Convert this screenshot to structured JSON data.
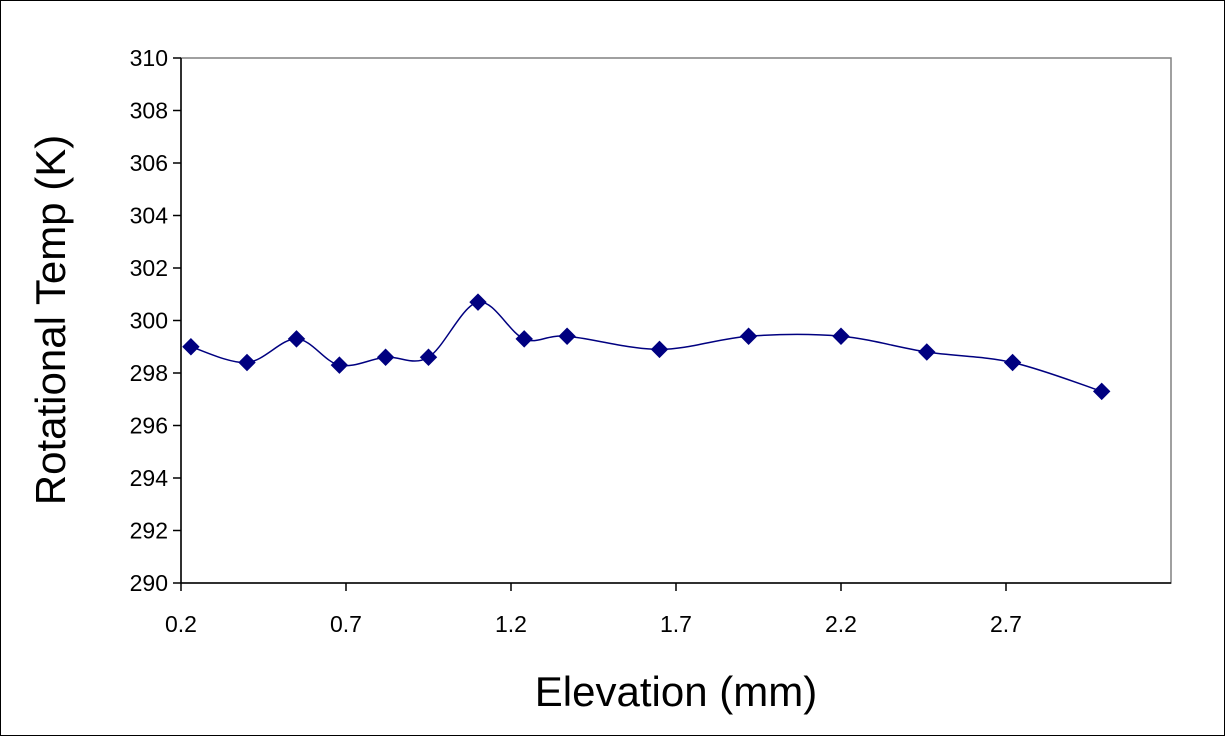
{
  "chart_data": {
    "type": "line",
    "xlabel": "Elevation (mm)",
    "ylabel": "Rotational Temp (K)",
    "xlim": [
      0.2,
      3.2
    ],
    "ylim": [
      290,
      310
    ],
    "x_ticks": [
      0.2,
      0.7,
      1.2,
      1.7,
      2.2,
      2.7
    ],
    "x_tick_labels": [
      "0.2",
      "0.7",
      "1.2",
      "1.7",
      "2.2",
      "2.7"
    ],
    "y_ticks": [
      290,
      292,
      294,
      296,
      298,
      300,
      302,
      304,
      306,
      308,
      310
    ],
    "y_tick_labels": [
      "290",
      "292",
      "294",
      "296",
      "298",
      "300",
      "302",
      "304",
      "306",
      "308",
      "310"
    ],
    "grid": false,
    "legend": "none",
    "series": [
      {
        "marker": "diamond",
        "smooth": true,
        "color": "#000080",
        "x": [
          0.23,
          0.4,
          0.55,
          0.68,
          0.82,
          0.95,
          1.1,
          1.24,
          1.37,
          1.65,
          1.92,
          2.2,
          2.46,
          2.72,
          2.99
        ],
        "y": [
          299.0,
          298.4,
          299.3,
          298.3,
          298.6,
          298.6,
          300.7,
          299.3,
          299.4,
          298.9,
          299.4,
          299.4,
          298.8,
          298.4,
          297.3
        ]
      }
    ]
  }
}
